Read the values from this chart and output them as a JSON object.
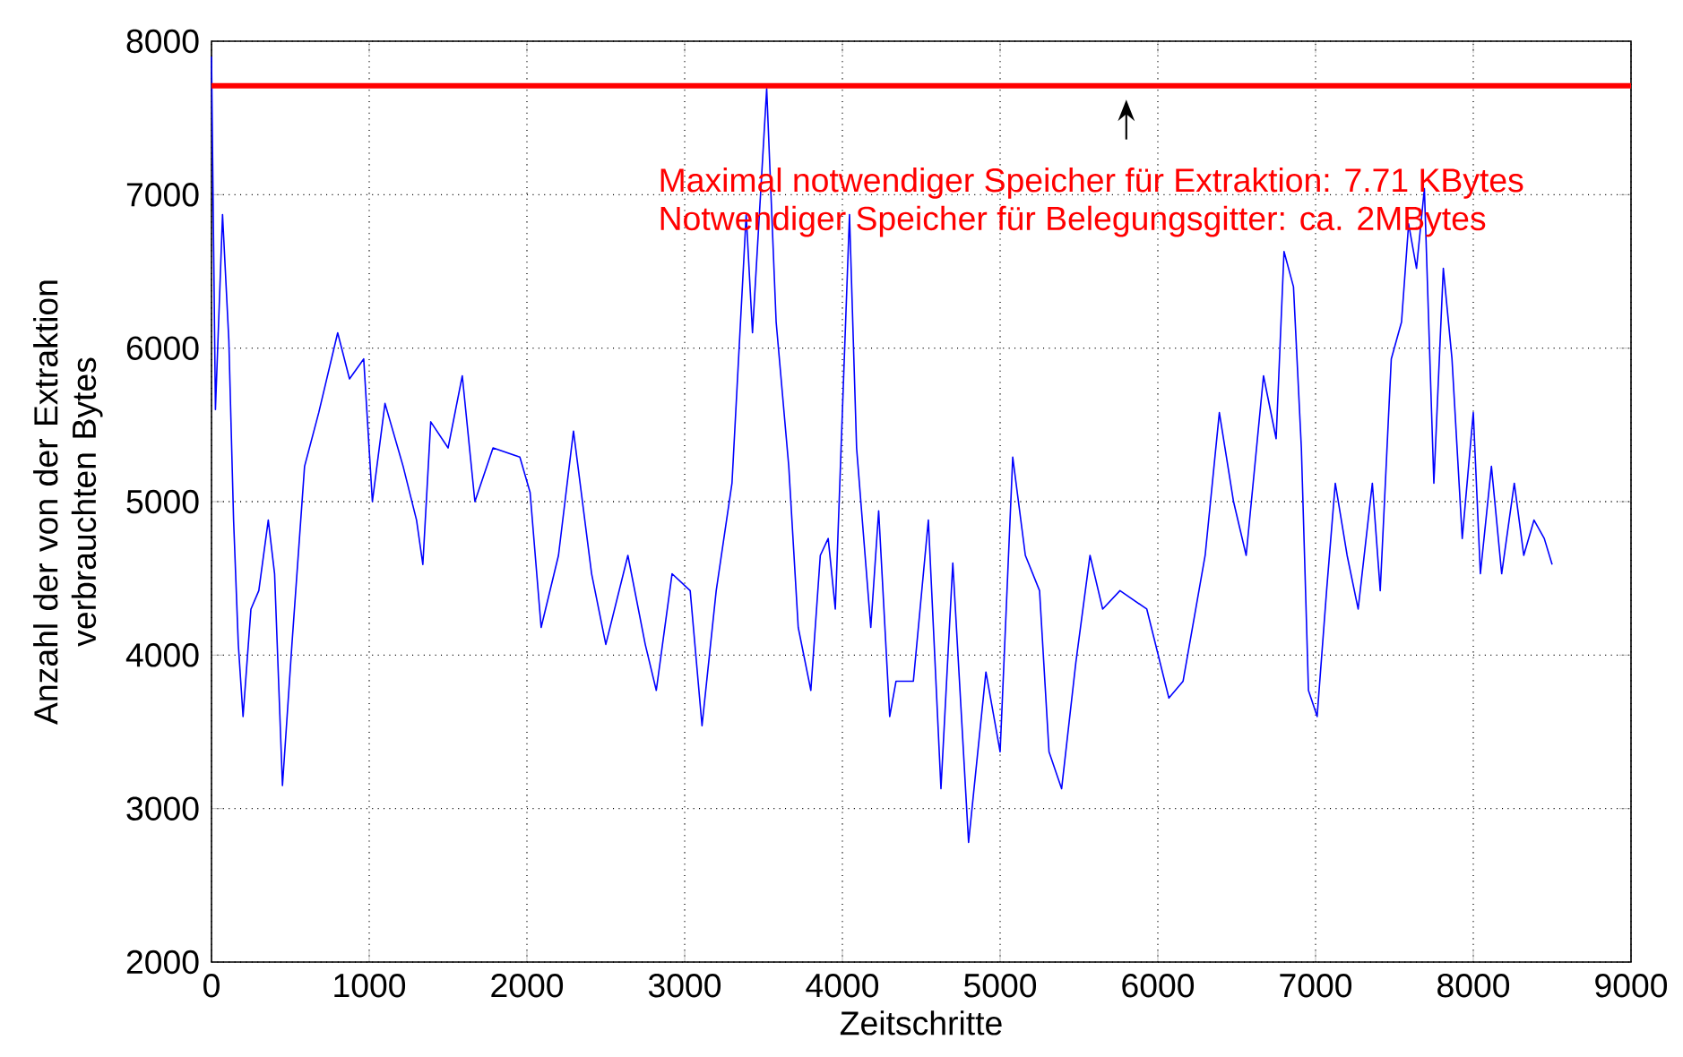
{
  "chart_data": {
    "type": "line",
    "xlabel": "Zeitschritte",
    "ylabel": "Anzahl der von der Extraktion verbrauchten Bytes",
    "xlim": [
      0,
      9000
    ],
    "ylim": [
      2000,
      8000
    ],
    "xticks": [
      0,
      1000,
      2000,
      3000,
      4000,
      5000,
      6000,
      7000,
      8000,
      9000
    ],
    "yticks": [
      2000,
      3000,
      4000,
      5000,
      6000,
      7000,
      8000
    ],
    "grid": true,
    "line_style": "solid",
    "marker": "none",
    "annotations": [
      {
        "text": "Maximal notwendiger Speicher für Extraktion: 7.71 KBytes",
        "x": 5800,
        "y": 7710
      },
      "Notwendiger Speicher für Belegungsgitter: ca. 2MBytes"
    ],
    "series": [
      {
        "color": "#0000ff",
        "x": [
          0,
          25,
          70,
          110,
          140,
          170,
          200,
          250,
          300,
          360,
          400,
          450,
          510,
          590,
          680,
          800,
          875,
          965,
          1020,
          1100,
          1215,
          1300,
          1340,
          1390,
          1500,
          1590,
          1670,
          1785,
          1955,
          2020,
          2090,
          2200,
          2295,
          2410,
          2500,
          2640,
          2750,
          2820,
          2920,
          3035,
          3110,
          3200,
          3300,
          3390,
          3430,
          3520,
          3580,
          3660,
          3720,
          3800,
          3860,
          3910,
          3955,
          4045,
          4090,
          4180,
          4230,
          4300,
          4340,
          4450,
          4545,
          4625,
          4700,
          4800,
          4910,
          5000,
          5080,
          5160,
          5250,
          5310,
          5390,
          5480,
          5570,
          5650,
          5760,
          5930,
          6070,
          6160,
          6300,
          6390,
          6480,
          6560,
          6670,
          6750,
          6800,
          6860,
          6910,
          6955,
          7010,
          7070,
          7125,
          7200,
          7270,
          7360,
          7410,
          7480,
          7545,
          7590,
          7640,
          7690,
          7750,
          7810,
          7865,
          7930,
          8000,
          8045,
          8115,
          8180,
          8260,
          8320,
          8385,
          8450,
          8500
        ],
        "values": [
          7900,
          5600,
          6870,
          6050,
          4880,
          4070,
          3600,
          4300,
          4420,
          4880,
          4530,
          3150,
          4070,
          5230,
          5580,
          6100,
          5800,
          5930,
          5000,
          5640,
          5230,
          4880,
          4590,
          5520,
          5350,
          5820,
          5000,
          5350,
          5290,
          5060,
          4180,
          4650,
          5460,
          4530,
          4070,
          4650,
          4070,
          3770,
          4530,
          4420,
          3540,
          4420,
          5120,
          6870,
          6100,
          7690,
          6170,
          5230,
          4180,
          3770,
          4650,
          4760,
          4300,
          6870,
          5350,
          4180,
          4940,
          3600,
          3830,
          3830,
          4880,
          3130,
          4600,
          2780,
          3890,
          3370,
          5290,
          4650,
          4420,
          3370,
          3130,
          3950,
          4650,
          4300,
          4420,
          4300,
          3720,
          3830,
          4650,
          5580,
          5000,
          4650,
          5820,
          5410,
          6630,
          6400,
          5350,
          3770,
          3600,
          4420,
          5120,
          4650,
          4300,
          5120,
          4420,
          5930,
          6170,
          6810,
          6520,
          7040,
          5120,
          6520,
          5930,
          4760,
          5580,
          4530,
          5230,
          4530,
          5120,
          4650,
          4880,
          4760,
          4590
        ]
      },
      {
        "color": "#ff0000",
        "x": [
          0,
          9000
        ],
        "values": [
          7710,
          7710
        ]
      }
    ]
  }
}
